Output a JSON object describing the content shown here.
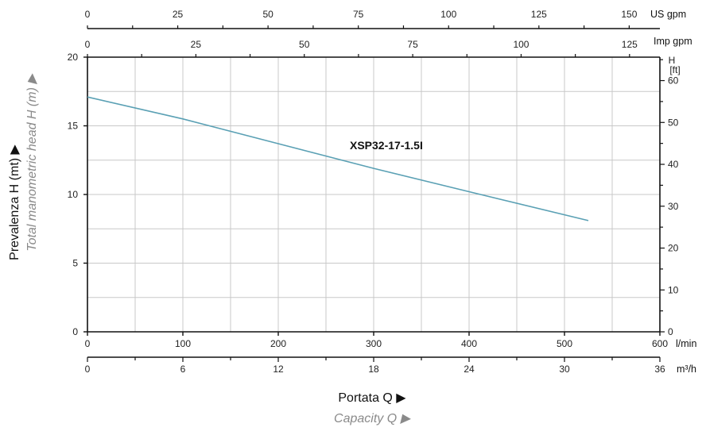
{
  "chart_data": {
    "type": "line",
    "colors": {
      "curve": "#5aa0b4",
      "grid": "#c8c8c8",
      "axis": "#111111"
    },
    "grid": true,
    "y_left": {
      "label": "Prevalenza H (mt) ▶",
      "label_en": "Total manometric head H (m) ▶",
      "range": [
        0,
        20
      ],
      "ticks": [
        0,
        5,
        10,
        15,
        20
      ]
    },
    "y_right": {
      "unit_label_top": "H",
      "unit_label_bottom": "[ft]",
      "range_ft": [
        0,
        65.6
      ],
      "ticks": [
        0,
        10,
        20,
        30,
        40,
        50,
        60
      ]
    },
    "x_axes": {
      "lmin": {
        "unit": "l/min",
        "range": [
          0,
          600
        ],
        "ticks": [
          0,
          100,
          200,
          300,
          400,
          500,
          600
        ]
      },
      "m3h": {
        "unit": "m³/h",
        "range": [
          0,
          36
        ],
        "ticks": [
          0,
          6,
          12,
          18,
          24,
          30,
          36
        ]
      },
      "us_gpm": {
        "unit": "US gpm",
        "range": [
          0,
          158.5
        ],
        "ticks": [
          0,
          25,
          50,
          75,
          100,
          125,
          150
        ]
      },
      "imp_gpm": {
        "unit": "Imp gpm",
        "range": [
          0,
          132
        ],
        "ticks": [
          0,
          25,
          50,
          75,
          100,
          125
        ]
      }
    },
    "xlabel": "Portata Q ▶",
    "xlabel_en": "Capacity Q ▶",
    "series": [
      {
        "name": "XSP32-17-1.5I",
        "x": [
          0,
          100,
          200,
          300,
          400,
          525
        ],
        "y": [
          17.1,
          15.5,
          13.7,
          11.9,
          10.2,
          8.1
        ]
      }
    ]
  }
}
